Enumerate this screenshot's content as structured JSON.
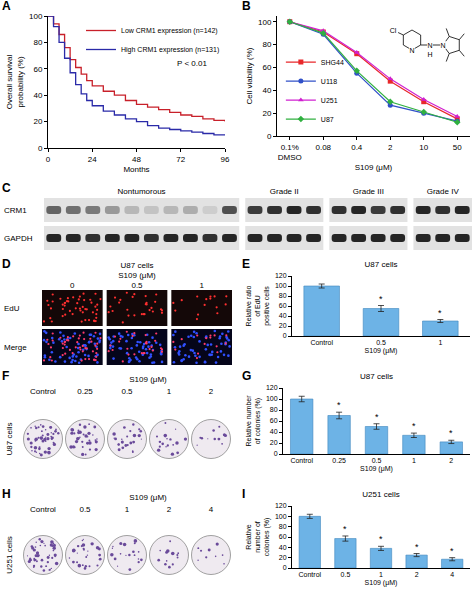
{
  "chart_data": [
    {
      "panel": "A",
      "type": "line",
      "line_style": "step",
      "x_label": "Months",
      "y_label": "Overall survival probability (%)",
      "x": [
        0,
        3,
        6,
        9,
        12,
        15,
        18,
        21,
        24,
        30,
        36,
        42,
        48,
        54,
        60,
        66,
        72,
        78,
        84,
        90,
        96
      ],
      "series": [
        {
          "name": "Low CRM1 expression (n=142)",
          "color": "#c8202a",
          "values": [
            100,
            94,
            86,
            76,
            67,
            61,
            56,
            51,
            47,
            43,
            40,
            36,
            33,
            31,
            29,
            27,
            25,
            24,
            22,
            21,
            20
          ]
        },
        {
          "name": "High CRM1 expression (n=131)",
          "color": "#2a2aa8",
          "values": [
            100,
            92,
            80,
            68,
            57,
            48,
            41,
            36,
            32,
            28,
            25,
            22,
            20,
            17,
            15,
            14,
            13,
            12,
            11,
            10,
            10
          ]
        }
      ],
      "xlim": [
        0,
        96
      ],
      "xticks": [
        0,
        24,
        48,
        72,
        96
      ],
      "ylim": [
        0,
        100
      ],
      "yticks": [
        0,
        20,
        40,
        60,
        80,
        100
      ],
      "legend": "upper right",
      "annotations": [
        {
          "text": "P < 0.01",
          "x": 78,
          "y": 64
        }
      ]
    },
    {
      "panel": "B",
      "type": "line",
      "x_label": "S109 (μM)",
      "y_label": "Cell viability (%)",
      "categories": [
        "0.1% DMSO",
        "0.08",
        "0.4",
        "2",
        "10",
        "50"
      ],
      "series": [
        {
          "name": "SHG44",
          "color": "#e8272a",
          "marker": "square",
          "values": [
            100,
            91,
            72,
            48,
            30,
            15
          ]
        },
        {
          "name": "U118",
          "color": "#3050c8",
          "marker": "circle",
          "values": [
            100,
            89,
            55,
            27,
            20,
            13
          ]
        },
        {
          "name": "U251",
          "color": "#d020d0",
          "marker": "triangle-up",
          "values": [
            100,
            92,
            73,
            50,
            32,
            17
          ]
        },
        {
          "name": "U87",
          "color": "#30b040",
          "marker": "diamond",
          "values": [
            100,
            90,
            57,
            30,
            21,
            12
          ]
        }
      ],
      "ylim": [
        0,
        105
      ],
      "yticks": [
        0,
        20,
        40,
        60,
        80,
        100
      ],
      "legend": "lower left"
    },
    {
      "panel": "E",
      "type": "bar",
      "title": "U87 cells",
      "x_label": "S109 (μM)",
      "y_label": "Relative ratio of EdU positive cells",
      "categories": [
        "Control",
        "0.5",
        "1"
      ],
      "values": [
        100,
        55,
        30
      ],
      "errors": [
        4,
        6,
        3
      ],
      "color": "#6db3e6",
      "ylim": [
        0,
        120
      ],
      "yticks": [
        0,
        20,
        40,
        60,
        80,
        100,
        120
      ],
      "annotations": [
        {
          "category": "0.5",
          "text": "*"
        },
        {
          "category": "1",
          "text": "*"
        }
      ]
    },
    {
      "panel": "G",
      "type": "bar",
      "title": "U87 cells",
      "x_label": "S109 (μM)",
      "y_label": "Relative number of colonies (%)",
      "categories": [
        "Control",
        "0.25",
        "0.5",
        "1",
        "2"
      ],
      "values": [
        100,
        70,
        50,
        34,
        22
      ],
      "errors": [
        5,
        6,
        5,
        4,
        3
      ],
      "color": "#6db3e6",
      "ylim": [
        0,
        120
      ],
      "yticks": [
        0,
        20,
        40,
        60,
        80,
        100,
        120
      ],
      "annotations": [
        {
          "category": "0.25",
          "text": "*"
        },
        {
          "category": "0.5",
          "text": "*"
        },
        {
          "category": "1",
          "text": "*"
        },
        {
          "category": "2",
          "text": "*"
        }
      ]
    },
    {
      "panel": "I",
      "type": "bar",
      "title": "U251 cells",
      "x_label": "S109 (μM)",
      "y_label": "Relative number of colonies (%)",
      "categories": [
        "Control",
        "0.5",
        "1",
        "2",
        "4"
      ],
      "values": [
        100,
        57,
        38,
        25,
        17
      ],
      "errors": [
        4,
        5,
        4,
        3,
        3
      ],
      "color": "#6db3e6",
      "ylim": [
        0,
        120
      ],
      "yticks": [
        0,
        20,
        40,
        60,
        80,
        100,
        120
      ],
      "annotations": [
        {
          "category": "0.5",
          "text": "*"
        },
        {
          "category": "1",
          "text": "*"
        },
        {
          "category": "2",
          "text": "*"
        },
        {
          "category": "4",
          "text": "*"
        }
      ]
    }
  ],
  "structure": {
    "panel": "B",
    "labels": [
      "Cl",
      "N",
      "N",
      "H",
      "N"
    ]
  },
  "blot": {
    "panel": "C",
    "rows": [
      "CRM1",
      "GAPDH"
    ],
    "groups": [
      {
        "label": "Nontumorous",
        "CRM1": [
          0.6,
          0.55,
          0.5,
          0.35,
          0.2,
          0.15,
          0.2,
          0.25,
          0.1,
          0.7
        ],
        "GAPDH": [
          0.9,
          0.9,
          0.85,
          0.9,
          0.9,
          0.85,
          0.9,
          0.9,
          0.85,
          0.9
        ]
      },
      {
        "label": "Grade II",
        "CRM1": [
          0.8,
          0.85,
          0.9,
          0.85
        ],
        "GAPDH": [
          0.9,
          0.9,
          0.9,
          0.9
        ]
      },
      {
        "label": "Grade III",
        "CRM1": [
          0.85,
          0.9,
          0.8,
          0.85
        ],
        "GAPDH": [
          0.9,
          0.9,
          0.9,
          0.9
        ]
      },
      {
        "label": "Grade IV",
        "CRM1": [
          0.9,
          0.85,
          0.9
        ],
        "GAPDH": [
          0.9,
          0.9,
          0.9
        ]
      }
    ]
  },
  "edu": {
    "panel": "D",
    "cell_line": "U87 cells",
    "treatment": "S109 (μM)",
    "doses": [
      "0",
      "0.5",
      "1"
    ],
    "rows": [
      "EdU",
      "Merge"
    ]
  },
  "colonies": [
    {
      "panel": "F",
      "cell_line": "U87 cells",
      "treatment": "S109 (μM)",
      "doses": [
        "Control",
        "0.25",
        "0.5",
        "1",
        "2"
      ]
    },
    {
      "panel": "H",
      "cell_line": "U251 cells",
      "treatment": "S109 (μM)",
      "doses": [
        "Control",
        "0.5",
        "1",
        "2",
        "4"
      ]
    }
  ]
}
